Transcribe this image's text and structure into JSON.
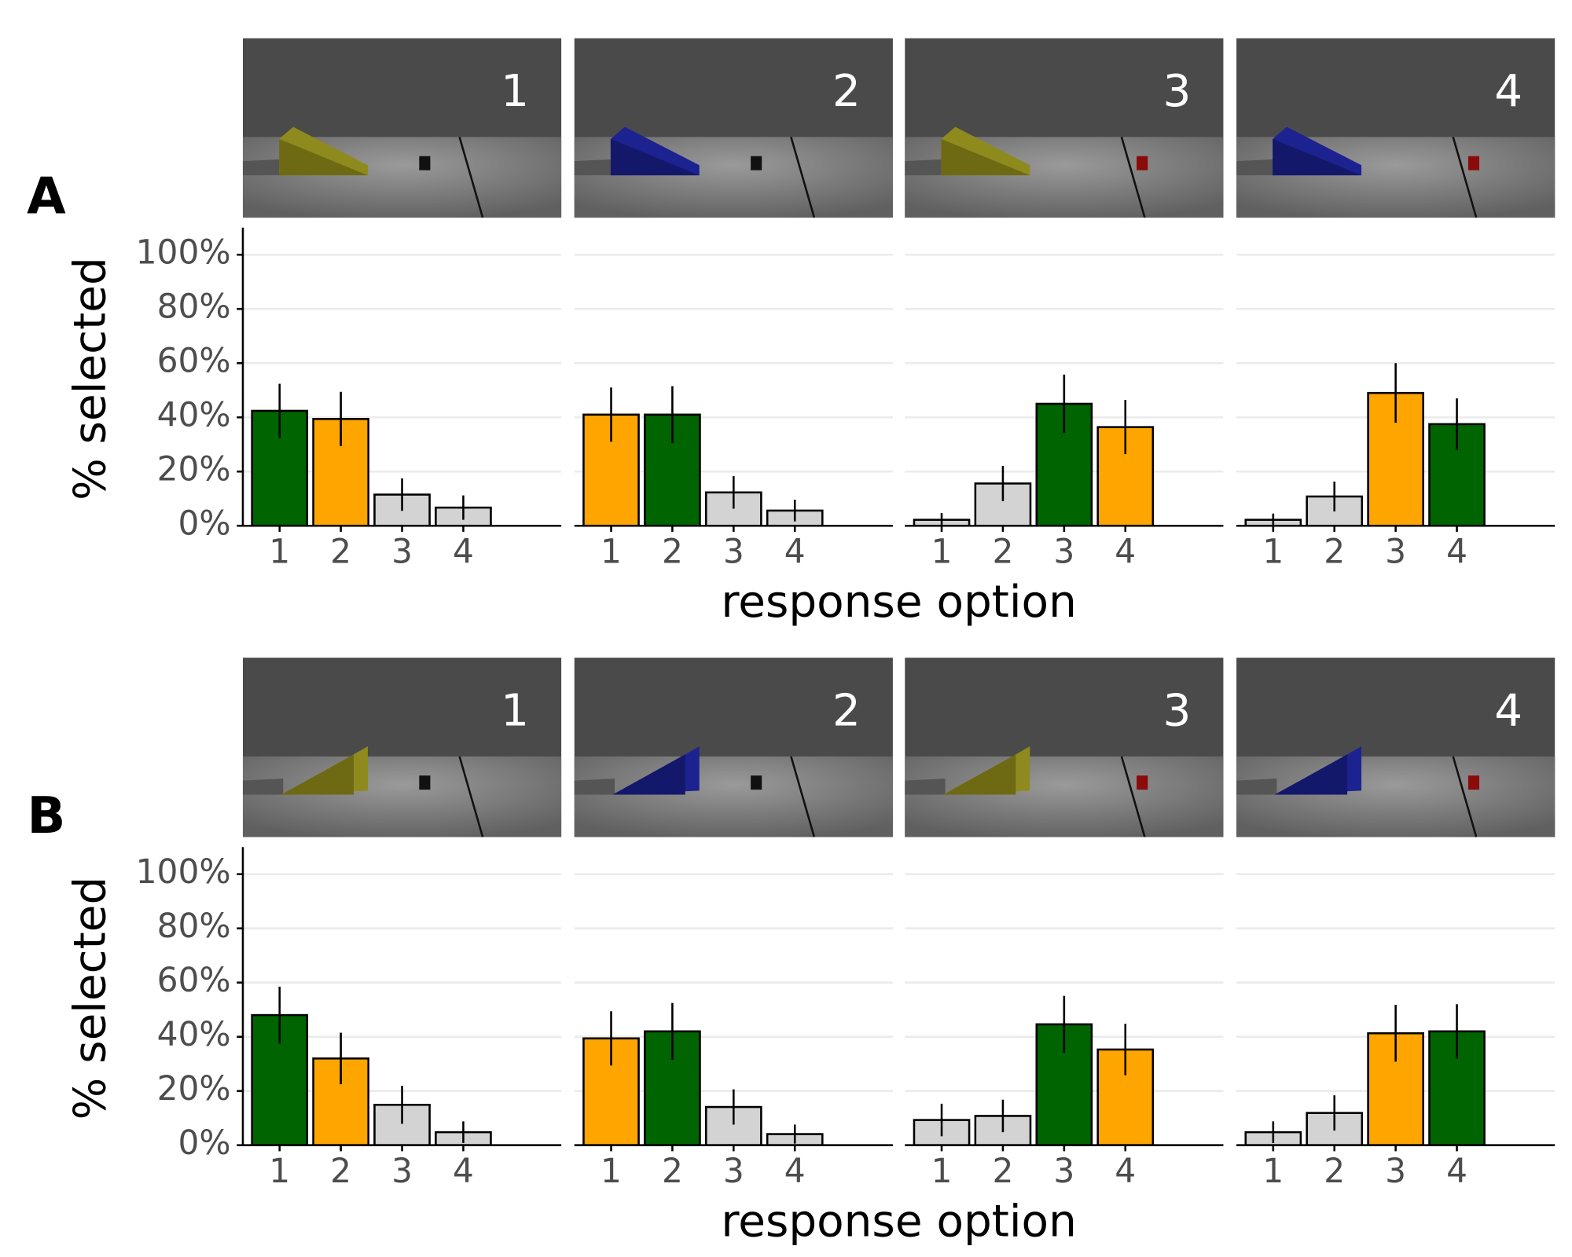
{
  "chart_data": [
    {
      "type": "bar",
      "panel_label": "A",
      "title": "1",
      "ylabel": "% selected",
      "xlabel": "response option",
      "categories": [
        "1",
        "2",
        "3",
        "4"
      ],
      "values": [
        42.4,
        39.4,
        11.5,
        6.7
      ],
      "errors": [
        10,
        10,
        6,
        4.5
      ],
      "colors": [
        "#006400",
        "#FFA500",
        "#D3D3D3",
        "#D3D3D3"
      ],
      "ylim": [
        0,
        110
      ],
      "yticks": [
        {
          "value": 0,
          "label": "0%"
        },
        {
          "value": 20,
          "label": "20%"
        },
        {
          "value": 40,
          "label": "40%"
        },
        {
          "value": 60,
          "label": "60%"
        },
        {
          "value": 80,
          "label": "80%"
        },
        {
          "value": 100,
          "label": "100%"
        }
      ],
      "grid": true
    },
    {
      "type": "bar",
      "title": "2",
      "categories": [
        "1",
        "2",
        "3",
        "4"
      ],
      "values": [
        41,
        41,
        12.3,
        5.6
      ],
      "errors": [
        10,
        10.5,
        6,
        4
      ],
      "colors": [
        "#FFA500",
        "#006400",
        "#D3D3D3",
        "#D3D3D3"
      ],
      "ylim": [
        0,
        110
      ],
      "yticks": [
        0,
        20,
        40,
        60,
        80,
        100
      ],
      "grid": true
    },
    {
      "type": "bar",
      "title": "3",
      "categories": [
        "1",
        "2",
        "3",
        "4"
      ],
      "values": [
        2.2,
        15.6,
        45,
        36.4
      ],
      "errors": [
        2.5,
        6.5,
        10.8,
        10
      ],
      "colors": [
        "#D3D3D3",
        "#D3D3D3",
        "#006400",
        "#FFA500"
      ],
      "ylim": [
        0,
        110
      ],
      "yticks": [
        0,
        20,
        40,
        60,
        80,
        100
      ],
      "grid": true
    },
    {
      "type": "bar",
      "title": "4",
      "categories": [
        "1",
        "2",
        "3",
        "4"
      ],
      "values": [
        2.2,
        10.8,
        49,
        37.5
      ],
      "errors": [
        2.3,
        5.5,
        11,
        9.5
      ],
      "colors": [
        "#D3D3D3",
        "#D3D3D3",
        "#FFA500",
        "#006400"
      ],
      "ylim": [
        0,
        110
      ],
      "yticks": [
        0,
        20,
        40,
        60,
        80,
        100
      ],
      "grid": true
    },
    {
      "type": "bar",
      "panel_label": "B",
      "title": "1",
      "ylabel": "% selected",
      "xlabel": "response option",
      "categories": [
        "1",
        "2",
        "3",
        "4"
      ],
      "values": [
        48,
        32,
        14.9,
        4.8
      ],
      "errors": [
        10.5,
        9.5,
        7,
        4
      ],
      "colors": [
        "#006400",
        "#FFA500",
        "#D3D3D3",
        "#D3D3D3"
      ],
      "ylim": [
        0,
        110
      ],
      "yticks": [
        {
          "value": 0,
          "label": "0%"
        },
        {
          "value": 20,
          "label": "20%"
        },
        {
          "value": 40,
          "label": "40%"
        },
        {
          "value": 60,
          "label": "60%"
        },
        {
          "value": 80,
          "label": "80%"
        },
        {
          "value": 100,
          "label": "100%"
        }
      ],
      "grid": true
    },
    {
      "type": "bar",
      "title": "2",
      "categories": [
        "1",
        "2",
        "3",
        "4"
      ],
      "values": [
        39.4,
        42,
        14.1,
        4.1
      ],
      "errors": [
        10,
        10.5,
        6.5,
        3.5
      ],
      "colors": [
        "#FFA500",
        "#006400",
        "#D3D3D3",
        "#D3D3D3"
      ],
      "ylim": [
        0,
        110
      ],
      "yticks": [
        0,
        20,
        40,
        60,
        80,
        100
      ],
      "grid": true
    },
    {
      "type": "bar",
      "title": "3",
      "categories": [
        "1",
        "2",
        "3",
        "4"
      ],
      "values": [
        9.3,
        10.8,
        44.6,
        35.3
      ],
      "errors": [
        6,
        6,
        10.5,
        9.5
      ],
      "colors": [
        "#D3D3D3",
        "#D3D3D3",
        "#006400",
        "#FFA500"
      ],
      "ylim": [
        0,
        110
      ],
      "yticks": [
        0,
        20,
        40,
        60,
        80,
        100
      ],
      "grid": true
    },
    {
      "type": "bar",
      "title": "4",
      "categories": [
        "1",
        "2",
        "3",
        "4"
      ],
      "values": [
        4.8,
        11.9,
        41.3,
        42
      ],
      "errors": [
        4,
        6.5,
        10.5,
        10
      ],
      "colors": [
        "#D3D3D3",
        "#D3D3D3",
        "#FFA500",
        "#006400"
      ],
      "ylim": [
        0,
        110
      ],
      "yticks": [
        0,
        20,
        40,
        60,
        80,
        100
      ],
      "grid": true
    }
  ]
}
